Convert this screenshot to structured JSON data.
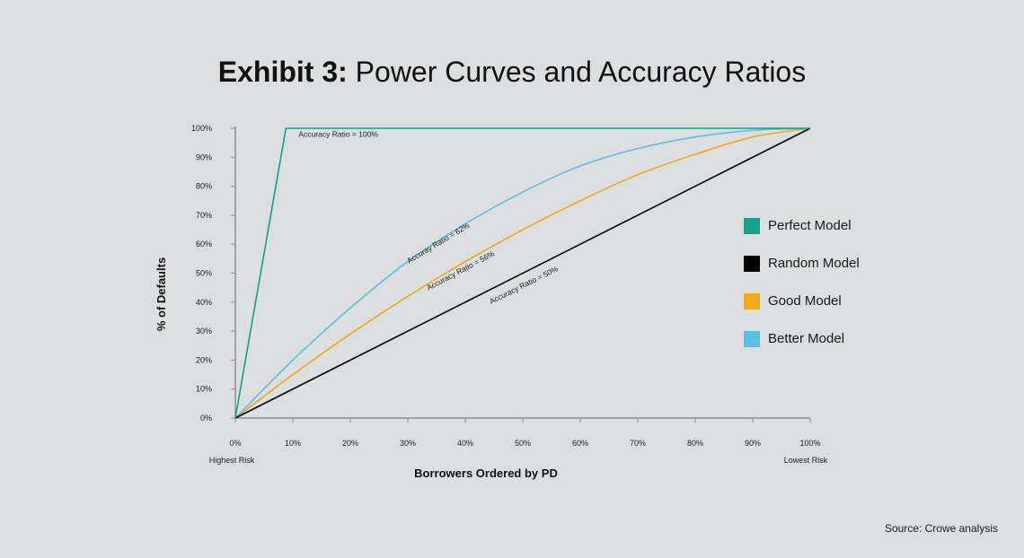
{
  "title": {
    "bold": "Exhibit 3:",
    "rest": "Power Curves and Accuracy Ratios"
  },
  "source": "Source: Crowe analysis",
  "chart_data": {
    "type": "line",
    "xlabel": "Borrowers Ordered by PD",
    "ylabel": "% of Defaults",
    "xlim": [
      0,
      100
    ],
    "ylim": [
      0,
      100
    ],
    "x_ticks": [
      "0%",
      "10%",
      "20%",
      "30%",
      "40%",
      "50%",
      "60%",
      "70%",
      "80%",
      "90%",
      "100%"
    ],
    "y_ticks": [
      "0%",
      "10%",
      "20%",
      "30%",
      "40%",
      "50%",
      "60%",
      "70%",
      "80%",
      "90%",
      "100%"
    ],
    "x_end_labels": {
      "left": "Highest Risk",
      "right": "Lowest Risk"
    },
    "grid": false,
    "legend_position": "right",
    "series": [
      {
        "name": "Perfect Model",
        "color": "#15a08a",
        "x": [
          0,
          8.8,
          100
        ],
        "y": [
          0,
          100,
          100
        ]
      },
      {
        "name": "Random Model",
        "color": "#000000",
        "x": [
          0,
          100
        ],
        "y": [
          0,
          100
        ]
      },
      {
        "name": "Good Model",
        "color": "#f0a81c",
        "x": [
          0,
          10,
          20,
          30,
          40,
          50,
          60,
          70,
          80,
          90,
          100
        ],
        "y": [
          0,
          15,
          29,
          42,
          54,
          65,
          75,
          84,
          91,
          97,
          100
        ]
      },
      {
        "name": "Better Model",
        "color": "#5bbfe4",
        "x": [
          0,
          10,
          20,
          30,
          40,
          50,
          60,
          70,
          80,
          90,
          100
        ],
        "y": [
          0,
          20,
          38,
          54,
          67,
          78,
          87,
          93,
          97,
          99.3,
          100
        ]
      }
    ],
    "annotations": [
      {
        "text": "Accuracy Ratio = 100%",
        "x": 11,
        "y": 97,
        "angle": 0
      },
      {
        "text": "Accuray Ratio = 62%",
        "x": 30.2,
        "y": 53.3,
        "angle": -31
      },
      {
        "text": "Accuracy Ratio = 56%",
        "x": 33.6,
        "y": 44,
        "angle": -28
      },
      {
        "text": "Accuracy Ratio = 50%",
        "x": 44.5,
        "y": 39.3,
        "angle": -26.5
      }
    ]
  }
}
